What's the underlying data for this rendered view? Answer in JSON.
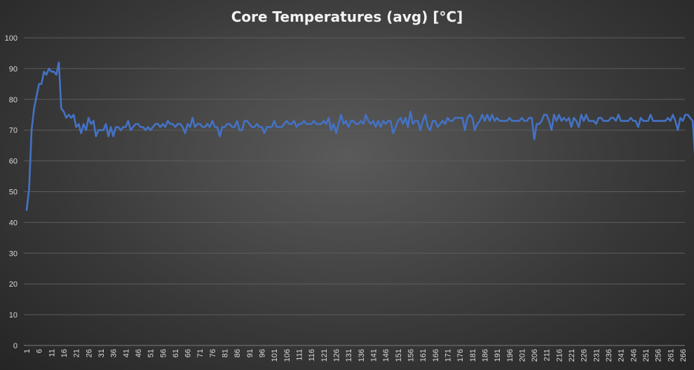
{
  "chart_data": {
    "type": "line",
    "title": "Core Temperatures (avg) [°C]",
    "xlabel": "",
    "ylabel": "",
    "xlim": [
      1,
      266
    ],
    "ylim": [
      0,
      100
    ],
    "yticks": [
      0,
      10,
      20,
      30,
      40,
      50,
      60,
      70,
      80,
      90,
      100
    ],
    "xtick_step": 5,
    "grid": true,
    "legend": "none",
    "series_color": "#4472c4",
    "series": [
      {
        "values": [
          44,
          51,
          70,
          77,
          81,
          85,
          85,
          89,
          88,
          90,
          89,
          89,
          88,
          92,
          77,
          76,
          74,
          75,
          74,
          75,
          71,
          72,
          69,
          72,
          70,
          74,
          72,
          73,
          68,
          70,
          70,
          70,
          72,
          68,
          71,
          68,
          71,
          71,
          70,
          71,
          71,
          73,
          70,
          71,
          72,
          72,
          71,
          71,
          70,
          71,
          70,
          71,
          72,
          72,
          71,
          72,
          71,
          73,
          72,
          72,
          71,
          72,
          72,
          71,
          69,
          72,
          71,
          74,
          71,
          72,
          72,
          71,
          71,
          72,
          71,
          73,
          71,
          71,
          68,
          71,
          71,
          72,
          72,
          71,
          71,
          73,
          70,
          70,
          73,
          73,
          72,
          71,
          71,
          72,
          71,
          71,
          69,
          71,
          71,
          71,
          73,
          71,
          71,
          71,
          72,
          73,
          72,
          72,
          73,
          71,
          72,
          72,
          73,
          72,
          72,
          72,
          73,
          72,
          72,
          72,
          73,
          72,
          74,
          70,
          72,
          69,
          72,
          75,
          72,
          73,
          71,
          73,
          73,
          72,
          72,
          73,
          72,
          75,
          73,
          72,
          73,
          71,
          73,
          71,
          73,
          72,
          73,
          73,
          69,
          71,
          73,
          74,
          72,
          74,
          71,
          76,
          72,
          73,
          73,
          70,
          73,
          75,
          71,
          70,
          73,
          73,
          71,
          72,
          73,
          72,
          74,
          73,
          73,
          74,
          74,
          74,
          74,
          70,
          74,
          75,
          74,
          70,
          72,
          73,
          75,
          73,
          75,
          73,
          75,
          73,
          74,
          73,
          73,
          73,
          73,
          74,
          73,
          73,
          73,
          73,
          74,
          73,
          73,
          74,
          74,
          67,
          72,
          72,
          73,
          75,
          75,
          73,
          70,
          75,
          73,
          75,
          73,
          74,
          73,
          74,
          71,
          74,
          73,
          71,
          75,
          73,
          75,
          73,
          73,
          73,
          72,
          74,
          74,
          73,
          73,
          73,
          74,
          74,
          73,
          75,
          73,
          73,
          73,
          73,
          74,
          73,
          73,
          71,
          74,
          73,
          73,
          73,
          75,
          73,
          73,
          73,
          73,
          73,
          73,
          74,
          73,
          75,
          73,
          70,
          74,
          73,
          75,
          75,
          74,
          73,
          61
        ]
      }
    ]
  }
}
